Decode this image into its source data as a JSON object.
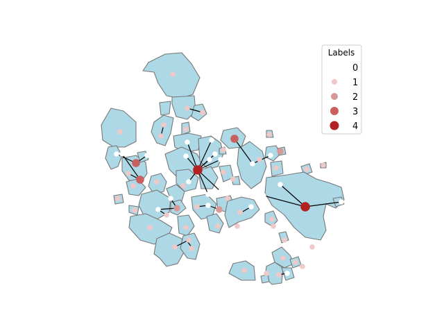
{
  "legend": {
    "title": "Labels",
    "entries": [
      {
        "label": "0",
        "color": "#ffffff"
      },
      {
        "label": "1",
        "color": "#efc8c8"
      },
      {
        "label": "2",
        "color": "#d89898"
      },
      {
        "label": "3",
        "color": "#c86060"
      },
      {
        "label": "4",
        "color": "#b22222"
      }
    ]
  },
  "colors": {
    "polygon_fill": "#add8e6",
    "polygon_edge": "#777777",
    "link": "#000000"
  }
}
